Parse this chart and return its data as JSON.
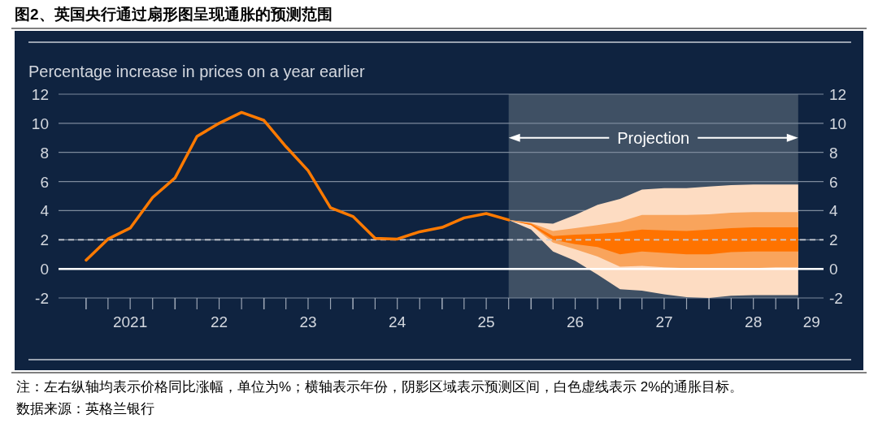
{
  "chart_data": {
    "type": "line",
    "title": "图2、英国央行通过扇形图呈现通胀的预测范围",
    "ylabel": "Percentage increase in prices on a year earlier",
    "annotations": [
      "注：左右纵轴均表示价格同比涨幅，单位为%；横轴表示年份，阴影区域表示预测区间，白色虚线表示 2%的通胀目标。",
      "数据来源：英格兰银行"
    ],
    "xlim": [
      "2020-09-10",
      "2029-04-15"
    ],
    "xticks": [
      {
        "value": "2021-01-01",
        "label": null
      },
      {
        "value": "2021-04-01",
        "label": null
      },
      {
        "value": "2021-07-01",
        "label": "2021"
      },
      {
        "value": "2021-10-01",
        "label": null
      },
      {
        "value": "2022-01-01",
        "label": null
      },
      {
        "value": "2022-04-01",
        "label": null
      },
      {
        "value": "2022-07-01",
        "label": "22"
      },
      {
        "value": "2022-10-01",
        "label": null
      },
      {
        "value": "2023-01-01",
        "label": null
      },
      {
        "value": "2023-04-01",
        "label": null
      },
      {
        "value": "2023-07-01",
        "label": "23"
      },
      {
        "value": "2023-10-01",
        "label": null
      },
      {
        "value": "2024-01-01",
        "label": null
      },
      {
        "value": "2024-04-01",
        "label": null
      },
      {
        "value": "2024-07-01",
        "label": "24"
      },
      {
        "value": "2024-10-01",
        "label": null
      },
      {
        "value": "2025-01-01",
        "label": null
      },
      {
        "value": "2025-04-01",
        "label": null
      },
      {
        "value": "2025-07-01",
        "label": "25"
      },
      {
        "value": "2025-10-01",
        "label": null
      },
      {
        "value": "2026-01-01",
        "label": null
      },
      {
        "value": "2026-04-01",
        "label": null
      },
      {
        "value": "2026-07-01",
        "label": "26"
      },
      {
        "value": "2026-10-01",
        "label": null
      },
      {
        "value": "2027-01-01",
        "label": null
      },
      {
        "value": "2027-04-01",
        "label": null
      },
      {
        "value": "2027-07-01",
        "label": "27"
      },
      {
        "value": "2027-10-01",
        "label": null
      },
      {
        "value": "2028-01-01",
        "label": null
      },
      {
        "value": "2028-04-01",
        "label": null
      },
      {
        "value": "2028-07-01",
        "label": "28"
      },
      {
        "value": "2028-10-01",
        "label": null
      },
      {
        "value": "2029-01-01",
        "label": null
      },
      {
        "value": "2029-02-25",
        "label": "29"
      }
    ],
    "ylim": [
      -2,
      12
    ],
    "yticks": [
      -2,
      0,
      2,
      4,
      6,
      8,
      10,
      12
    ],
    "y2lim": [
      -2,
      12
    ],
    "y2ticks": [
      -2,
      0,
      2,
      4,
      6,
      8,
      10,
      12
    ],
    "grid": "y",
    "bands": [
      {
        "axis": "x",
        "from": "2025-10",
        "to": "2029-01",
        "label": "Projection",
        "color": "#3f5064"
      }
    ],
    "ref_lines": [
      {
        "axis": "y",
        "value": 0,
        "label": null,
        "color": "#ffffff",
        "line_style": "solid"
      },
      {
        "axis": "y",
        "value": 2,
        "label": null,
        "color": "#c8ccd4",
        "line_style": "dashed"
      }
    ],
    "series": [
      {
        "type": "line",
        "color": "#fddcc2",
        "x": [
          "2025-10",
          "2026-01",
          "2026-04",
          "2026-07",
          "2026-10",
          "2027-01",
          "2027-04",
          "2027-07",
          "2027-10",
          "2028-01",
          "2028-04",
          "2028-07",
          "2028-10",
          "2029-01"
        ],
        "values": [
          null,
          null,
          null,
          null,
          null,
          null,
          null,
          null,
          null,
          null,
          null,
          null,
          null,
          null
        ],
        "upper": [
          3.36,
          3.2,
          3.1,
          3.7,
          4.4,
          4.8,
          5.45,
          5.55,
          5.55,
          5.65,
          5.75,
          5.8,
          5.8,
          5.8
        ],
        "lower": [
          3.36,
          2.7,
          1.2,
          0.55,
          -0.4,
          -1.4,
          -1.5,
          -1.75,
          -1.95,
          -2.0,
          -1.85,
          -1.8,
          -1.8,
          -1.8
        ]
      },
      {
        "type": "line",
        "color": "#f9a45c",
        "x": [
          "2025-10",
          "2026-01",
          "2026-04",
          "2026-07",
          "2026-10",
          "2027-01",
          "2027-04",
          "2027-07",
          "2027-10",
          "2028-01",
          "2028-04",
          "2028-07",
          "2028-10",
          "2029-01"
        ],
        "values": [
          null,
          null,
          null,
          null,
          null,
          null,
          null,
          null,
          null,
          null,
          null,
          null,
          null,
          null
        ],
        "upper": [
          3.36,
          3.15,
          2.6,
          2.8,
          3.0,
          3.25,
          3.7,
          3.7,
          3.7,
          3.75,
          3.85,
          3.9,
          3.9,
          3.9
        ],
        "lower": [
          3.36,
          3.0,
          1.8,
          1.35,
          0.85,
          0.15,
          0.2,
          0.1,
          0.05,
          0.0,
          0.05,
          0.05,
          0.1,
          0.1
        ]
      },
      {
        "type": "line",
        "color": "#ff7300",
        "x": [
          "2025-10",
          "2026-01",
          "2026-04",
          "2026-07",
          "2026-10",
          "2027-01",
          "2027-04",
          "2027-07",
          "2027-10",
          "2028-01",
          "2028-04",
          "2028-07",
          "2028-10",
          "2029-01"
        ],
        "values": [
          null,
          null,
          null,
          null,
          null,
          null,
          null,
          null,
          null,
          null,
          null,
          null,
          null,
          null
        ],
        "upper": [
          3.36,
          3.1,
          2.25,
          2.35,
          2.4,
          2.5,
          2.7,
          2.65,
          2.6,
          2.7,
          2.8,
          2.85,
          2.85,
          2.85
        ],
        "lower": [
          3.36,
          3.0,
          2.0,
          1.7,
          1.5,
          1.0,
          1.2,
          1.1,
          1.0,
          1.0,
          1.15,
          1.2,
          1.2,
          1.2
        ]
      },
      {
        "color": "#ff7a00",
        "x": [
          "2021-01",
          "2021-04",
          "2021-07",
          "2021-10",
          "2022-01",
          "2022-04",
          "2022-07",
          "2022-10",
          "2023-01",
          "2023-04",
          "2023-07",
          "2023-10",
          "2024-01",
          "2024-04",
          "2024-07",
          "2024-10",
          "2025-01",
          "2025-04",
          "2025-07",
          "2025-10"
        ],
        "values": [
          0.6,
          2.05,
          2.8,
          4.9,
          6.25,
          9.1,
          10.0,
          10.75,
          10.2,
          8.4,
          6.75,
          4.2,
          3.6,
          2.1,
          2.05,
          2.55,
          2.85,
          3.5,
          3.8,
          3.36
        ]
      }
    ]
  }
}
